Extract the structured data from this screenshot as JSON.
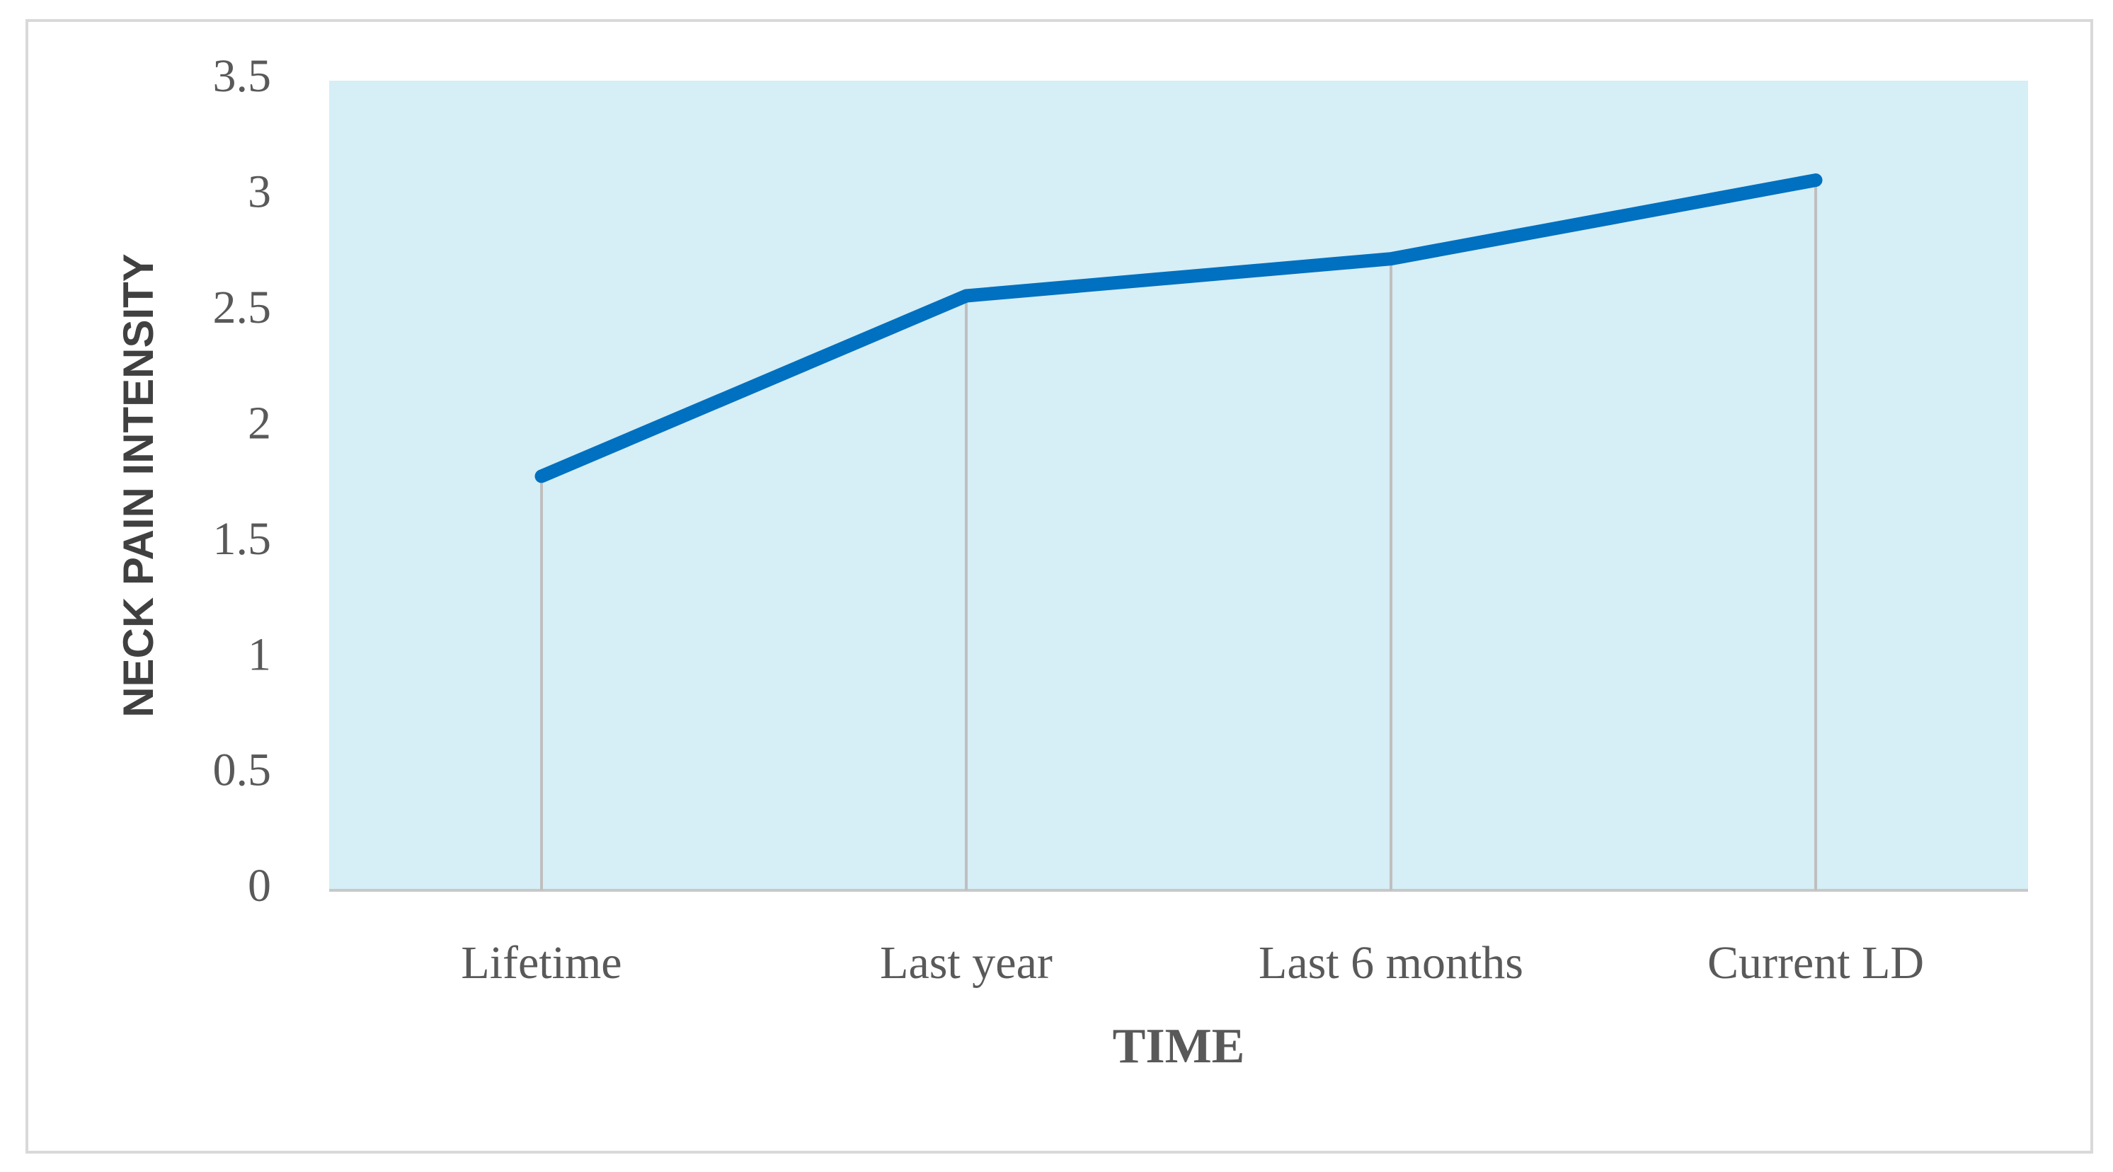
{
  "chart_data": {
    "type": "line",
    "x_label": "TIME",
    "y_label": "NECK PAIN INTENSITY",
    "categories": [
      "Lifetime",
      "Last year",
      "Last 6 months",
      "Current LD"
    ],
    "values": [
      1.79,
      2.57,
      2.73,
      3.07
    ],
    "color": "#0070c0",
    "plot_background": "#d6eef5",
    "drop_lines": true,
    "ylim": [
      0,
      3.5
    ],
    "yticks": [
      0,
      0.5,
      1,
      1.5,
      2,
      2.5,
      3,
      3.5
    ]
  }
}
